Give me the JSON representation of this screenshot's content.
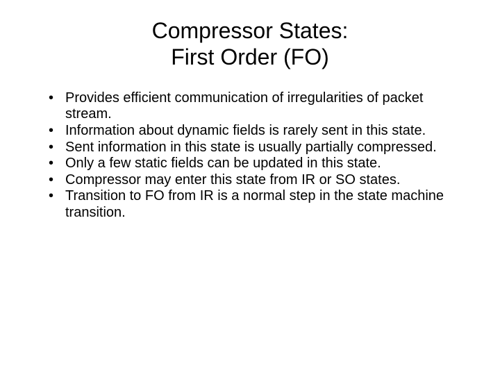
{
  "title": {
    "line1": "Compressor States:",
    "line2": "First Order (FO)"
  },
  "bullets": [
    "Provides efficient communication of irregularities of packet stream.",
    "Information about dynamic fields is rarely sent in this state.",
    "Sent information in this state is usually partially compressed.",
    "Only a few static fields can be updated in this state.",
    "Compressor may enter this state from IR or SO states.",
    "Transition to FO from IR is a normal step in the state machine transition."
  ],
  "colors": {
    "background": "#ffffff",
    "text": "#000000"
  },
  "typography": {
    "title_fontsize": 32,
    "bullet_fontsize": 20,
    "font_family": "Arial"
  }
}
